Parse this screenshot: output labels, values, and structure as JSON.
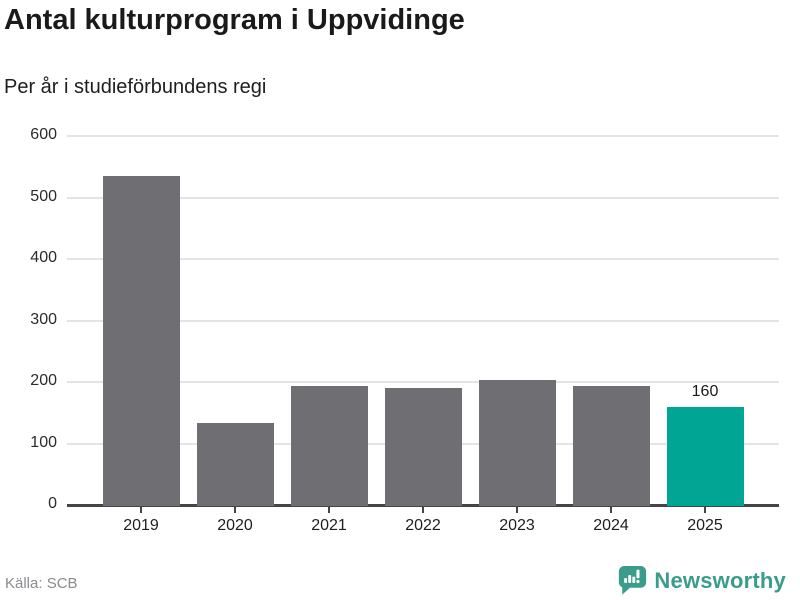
{
  "chart_data": {
    "type": "bar",
    "title": "Antal kulturprogram i Uppvidinge",
    "subtitle": "Per år i studieförbundens regi",
    "categories": [
      "2019",
      "2020",
      "2021",
      "2022",
      "2023",
      "2024",
      "2025"
    ],
    "values": [
      535,
      133,
      193,
      190,
      203,
      193,
      160
    ],
    "highlight_index": 6,
    "annotations": [
      {
        "index": 6,
        "text": "160"
      }
    ],
    "xlabel": "",
    "ylabel": "",
    "ylim": [
      0,
      600
    ],
    "yticks": [
      0,
      100,
      200,
      300,
      400,
      500,
      600
    ],
    "grid": true,
    "legend": null,
    "colors": {
      "bar": "#6e6e73",
      "highlight": "#00a693",
      "gridline": "#e4e4e4",
      "axis": "#454547",
      "tick_label": "#2b2b2b"
    }
  },
  "footer": {
    "source": "Källa: SCB",
    "brand": "Newsworthy",
    "brand_color": "#3a9d8c"
  }
}
